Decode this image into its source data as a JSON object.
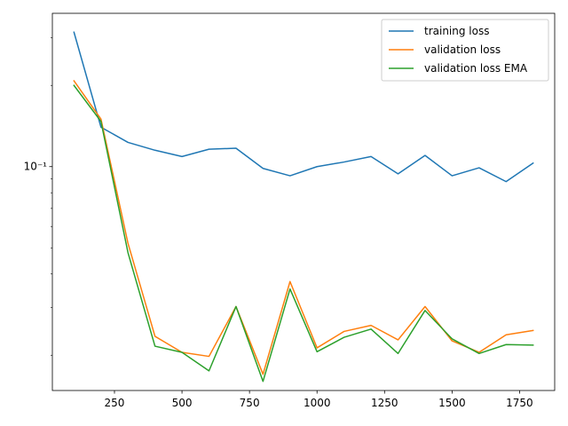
{
  "chart_data": {
    "type": "line",
    "title": "",
    "xlabel": "",
    "ylabel": "",
    "x": [
      100,
      200,
      300,
      400,
      500,
      600,
      700,
      800,
      900,
      1000,
      1100,
      1200,
      1300,
      1400,
      1500,
      1600,
      1700,
      1800
    ],
    "series": [
      {
        "name": "training loss",
        "color": "#1f77b4",
        "values": [
          0.315,
          0.14,
          0.123,
          0.115,
          0.109,
          0.116,
          0.117,
          0.0985,
          0.0925,
          0.1,
          0.104,
          0.109,
          0.094,
          0.11,
          0.0925,
          0.099,
          0.088,
          0.103
        ]
      },
      {
        "name": "validation loss",
        "color": "#ff7f0e",
        "values": [
          0.208,
          0.15,
          0.052,
          0.0235,
          0.0205,
          0.0198,
          0.0303,
          0.017,
          0.0375,
          0.0213,
          0.0245,
          0.0258,
          0.0228,
          0.0303,
          0.0226,
          0.0205,
          0.0238,
          0.0247
        ]
      },
      {
        "name": "validation loss EMA",
        "color": "#2ca02c",
        "values": [
          0.2,
          0.147,
          0.048,
          0.0216,
          0.0205,
          0.0175,
          0.0303,
          0.016,
          0.0352,
          0.0206,
          0.0233,
          0.025,
          0.0203,
          0.0293,
          0.023,
          0.0203,
          0.0219,
          0.0218
        ]
      }
    ],
    "xlim": [
      20,
      1880
    ],
    "ylim": [
      0.0148,
      0.37
    ],
    "yscale": "log",
    "xticks": [
      250,
      500,
      750,
      1000,
      1250,
      1500,
      1750
    ],
    "xtick_labels": [
      "250",
      "500",
      "750",
      "1000",
      "1250",
      "1500",
      "1750"
    ],
    "yticks_major": [
      0.1
    ],
    "ytick_labels": [
      "10⁻¹"
    ],
    "yticks_minor": [
      0.02,
      0.03,
      0.04,
      0.05,
      0.06,
      0.07,
      0.08,
      0.09,
      0.2,
      0.3
    ],
    "grid": false,
    "legend_position": "top-right"
  }
}
